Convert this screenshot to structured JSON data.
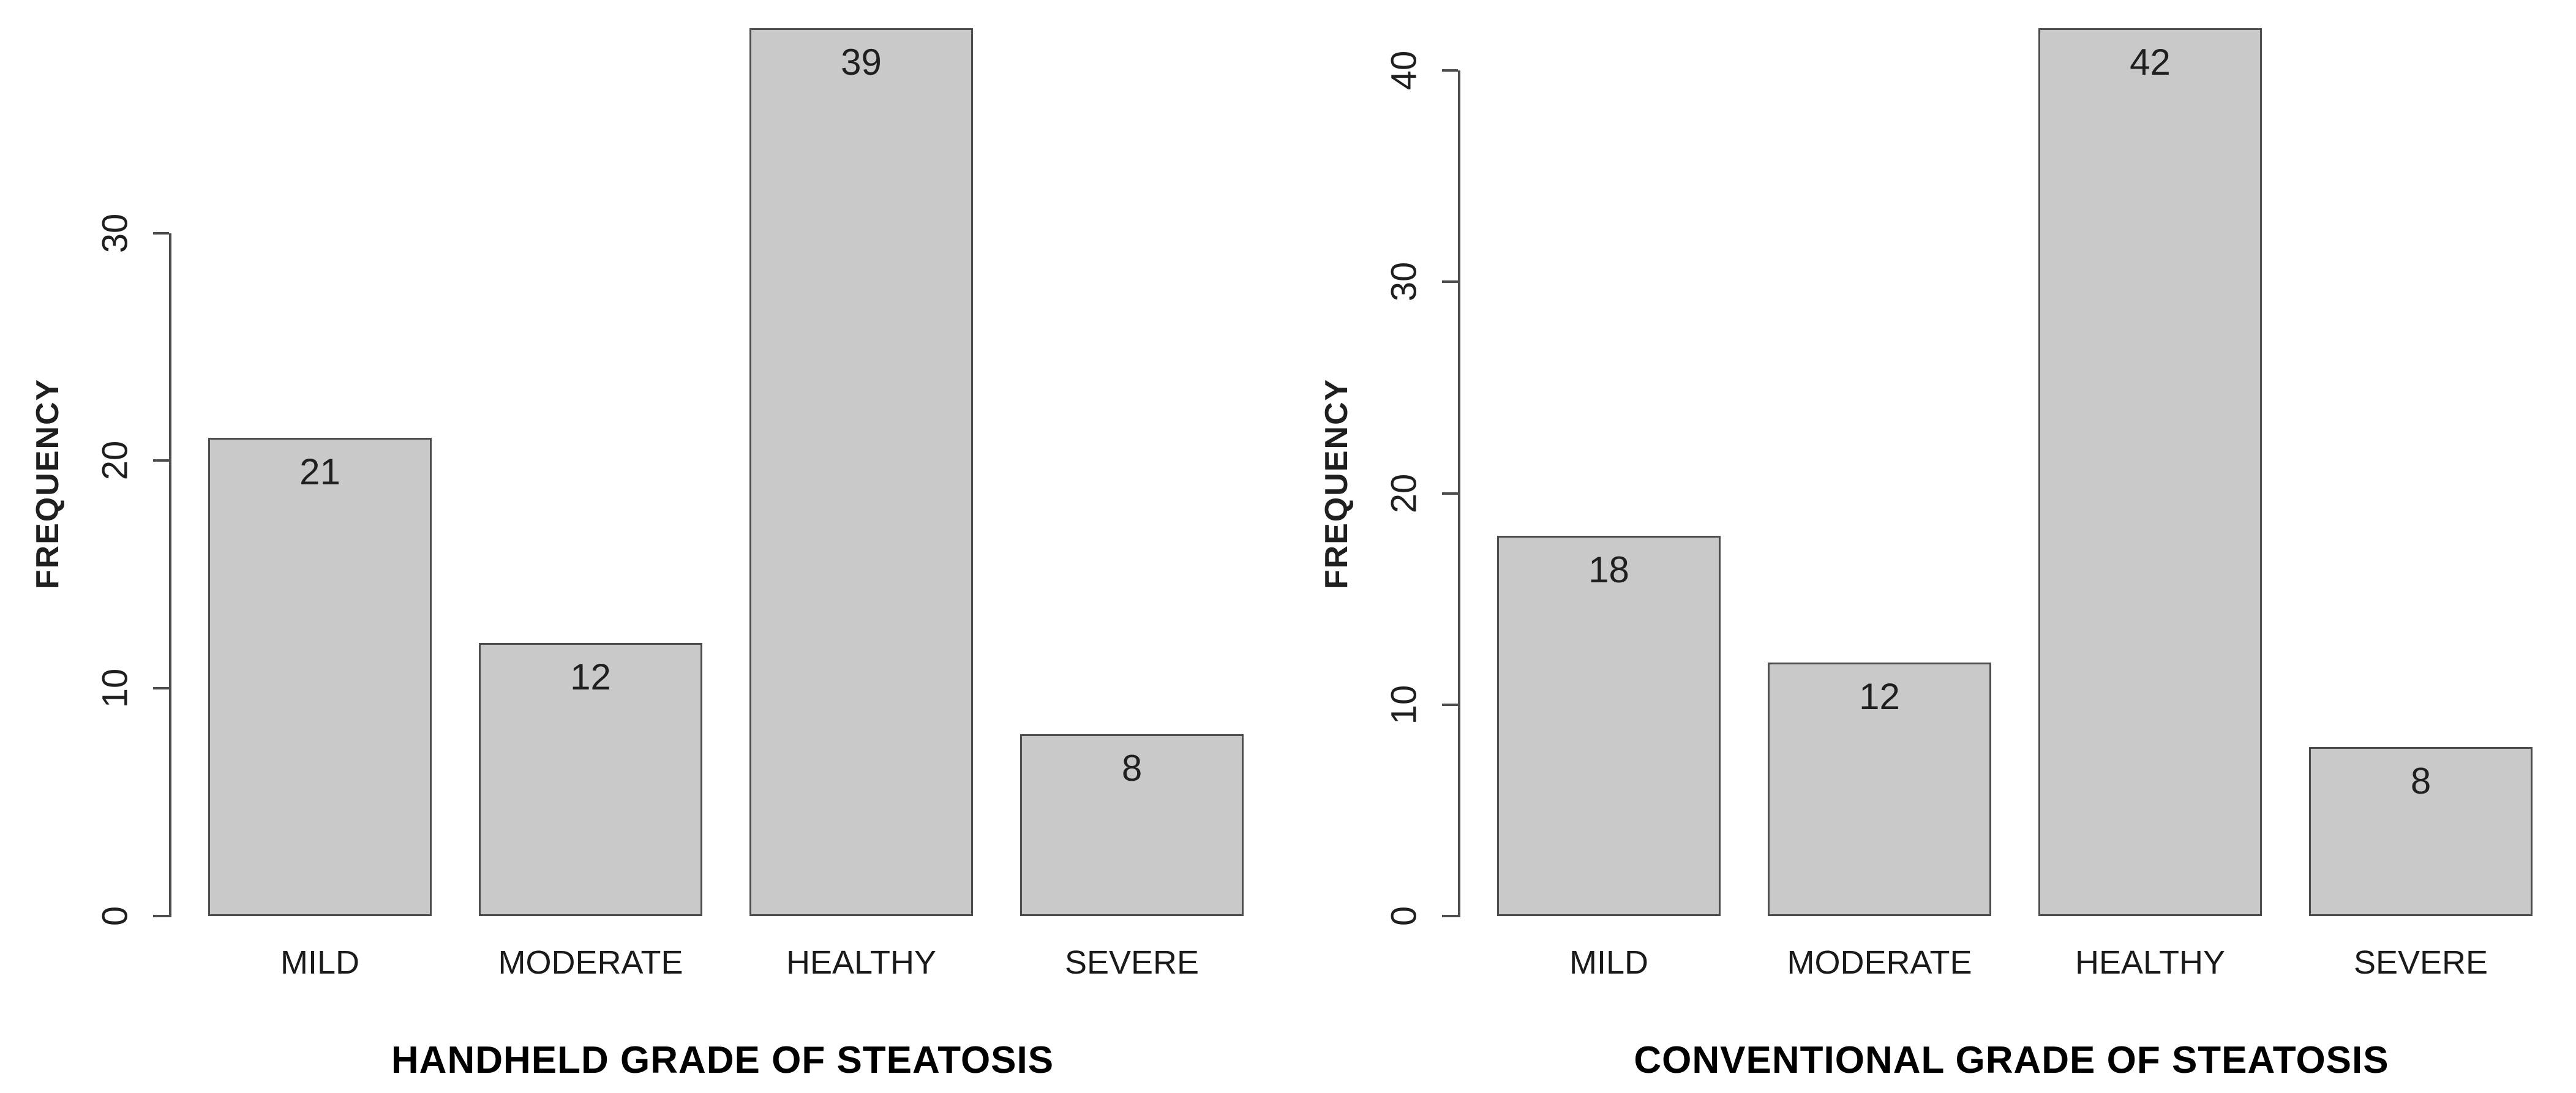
{
  "figure": {
    "background": "#ffffff",
    "text_color": "#1f1f1f",
    "axis_color": "#4d4d4d"
  },
  "chart_data": [
    {
      "type": "bar",
      "title": "",
      "xlabel": "HANDHELD GRADE OF STEATOSIS",
      "ylabel": "FREQUENCY",
      "categories": [
        "MILD",
        "MODERATE",
        "HEALTHY",
        "SEVERE"
      ],
      "values": [
        21,
        12,
        39,
        8
      ],
      "yticks": [
        0,
        10,
        20,
        30
      ],
      "ylim": [
        0,
        39
      ],
      "grid": false,
      "legend": "none",
      "value_labels_shown": true,
      "bar_fill": "#c9c9c9",
      "bar_border": "#4d4d4d"
    },
    {
      "type": "bar",
      "title": "",
      "xlabel": "CONVENTIONAL GRADE OF STEATOSIS",
      "ylabel": "FREQUENCY",
      "categories": [
        "MILD",
        "MODERATE",
        "HEALTHY",
        "SEVERE"
      ],
      "values": [
        18,
        12,
        42,
        8
      ],
      "yticks": [
        0,
        10,
        20,
        30,
        40
      ],
      "ylim": [
        0,
        42
      ],
      "grid": false,
      "legend": "none",
      "value_labels_shown": true,
      "bar_fill": "#c9c9c9",
      "bar_border": "#4d4d4d"
    }
  ]
}
